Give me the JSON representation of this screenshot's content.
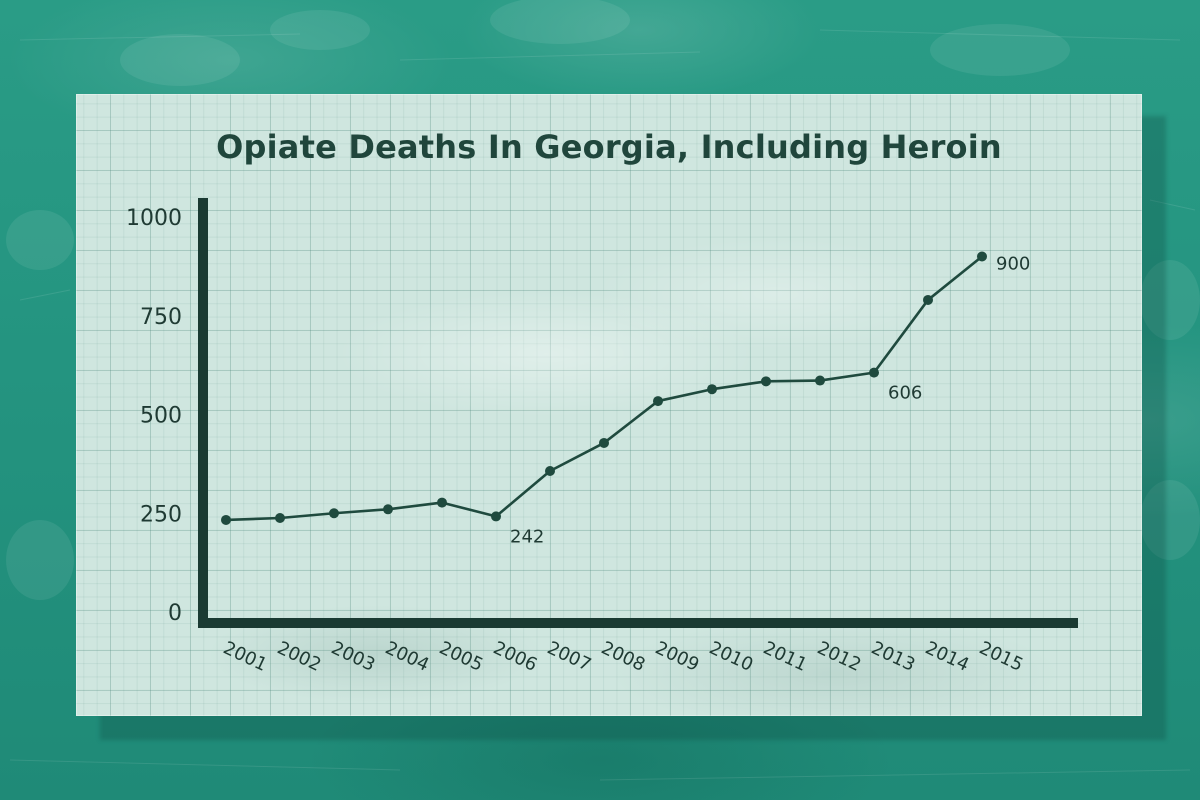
{
  "chart_data": {
    "type": "line",
    "title": "Opiate Deaths In Georgia, Including Heroin",
    "xlabel": "",
    "ylabel": "",
    "ylim": [
      0,
      1000
    ],
    "yticks": [
      "0",
      "250",
      "500",
      "750",
      "1000"
    ],
    "categories": [
      "2001",
      "2002",
      "2003",
      "2004",
      "2005",
      "2006",
      "2007",
      "2008",
      "2009",
      "2010",
      "2011",
      "2012",
      "2013",
      "2014",
      "2015"
    ],
    "series": [
      {
        "values": [
          233,
          238,
          250,
          260,
          277,
          242,
          357,
          428,
          534,
          564,
          584,
          586,
          606,
          790,
          900
        ]
      }
    ],
    "data_labels": [
      {
        "index": 5,
        "text": "242"
      },
      {
        "index": 12,
        "text": "606"
      },
      {
        "index": 14,
        "text": "900"
      }
    ],
    "grid": false,
    "colors": {
      "line": "#1f4a3e",
      "axis": "#1a3a32",
      "text": "#1f3a33",
      "title": "#20463c"
    }
  }
}
